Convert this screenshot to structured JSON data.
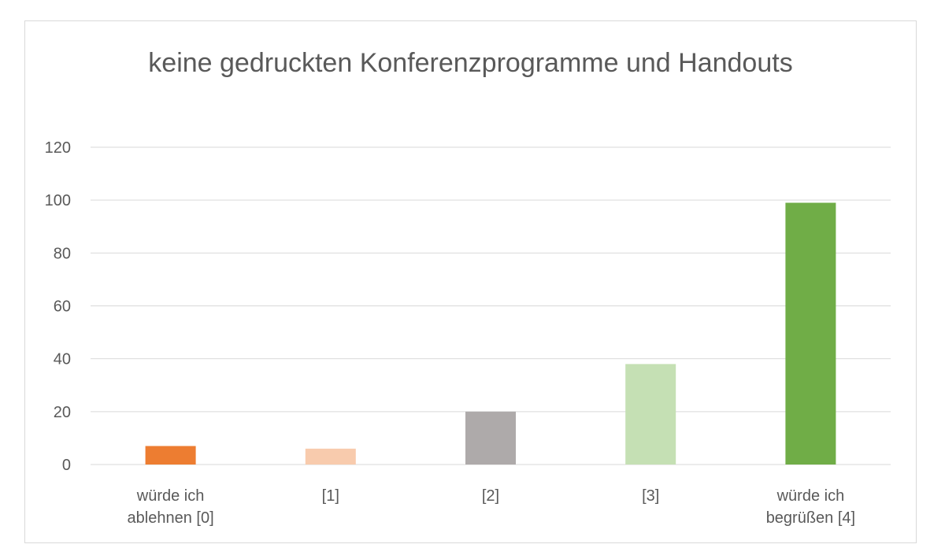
{
  "chart_data": {
    "type": "bar",
    "title": "keine gedruckten Konferenzprogramme und Handouts",
    "categories": [
      [
        "würde ich",
        "ablehnen [0]"
      ],
      [
        "[1]"
      ],
      [
        "[2]"
      ],
      [
        "[3]"
      ],
      [
        "würde ich",
        "begrüßen [4]"
      ]
    ],
    "values": [
      7,
      6,
      20,
      38,
      99
    ],
    "colors": [
      "#ed7d31",
      "#f8cbad",
      "#aeaaaa",
      "#c5e0b4",
      "#70ad47"
    ],
    "ylim": [
      0,
      120
    ],
    "yticks": [
      0,
      20,
      40,
      60,
      80,
      100,
      120
    ],
    "grid": true,
    "gridColor": "#d9d9d9",
    "xlabel": "",
    "ylabel": ""
  }
}
